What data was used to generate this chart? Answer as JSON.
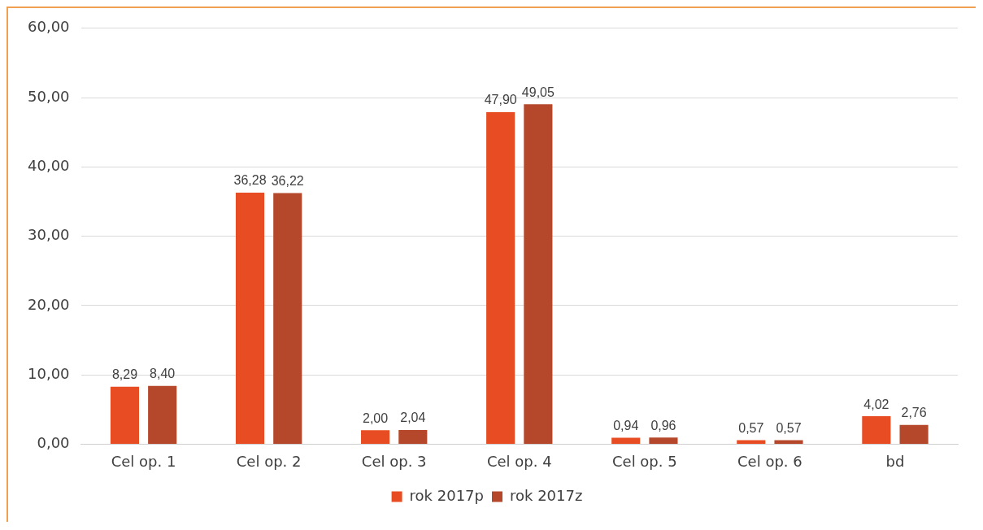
{
  "chart_data": {
    "type": "bar",
    "categories": [
      "Cel op. 1",
      "Cel op. 2",
      "Cel op. 3",
      "Cel op. 4",
      "Cel op. 5",
      "Cel op. 6",
      "bd"
    ],
    "series": [
      {
        "name": "rok 2017p",
        "color": "#e84c22",
        "values": [
          8.29,
          36.28,
          2.0,
          47.9,
          0.94,
          0.57,
          4.02
        ],
        "value_labels": [
          "8,29",
          "36,28",
          "2,00",
          "47,90",
          "0,94",
          "0,57",
          "4,02"
        ]
      },
      {
        "name": "rok 2017z",
        "color": "#b5482a",
        "values": [
          8.4,
          36.22,
          2.04,
          49.05,
          0.96,
          0.57,
          2.76
        ],
        "value_labels": [
          "8,40",
          "36,22",
          "2,04",
          "49,05",
          "0,96",
          "0,57",
          "2,76"
        ]
      }
    ],
    "ylim": [
      0,
      60
    ],
    "yticks": [
      {
        "value": 0,
        "label": "0,00"
      },
      {
        "value": 10,
        "label": "10,00"
      },
      {
        "value": 20,
        "label": "20,00"
      },
      {
        "value": 30,
        "label": "30,00"
      },
      {
        "value": 40,
        "label": "40,00"
      },
      {
        "value": 50,
        "label": "50,00"
      },
      {
        "value": 60,
        "label": "60,00"
      }
    ],
    "grid": "y",
    "legend": "bottom"
  }
}
